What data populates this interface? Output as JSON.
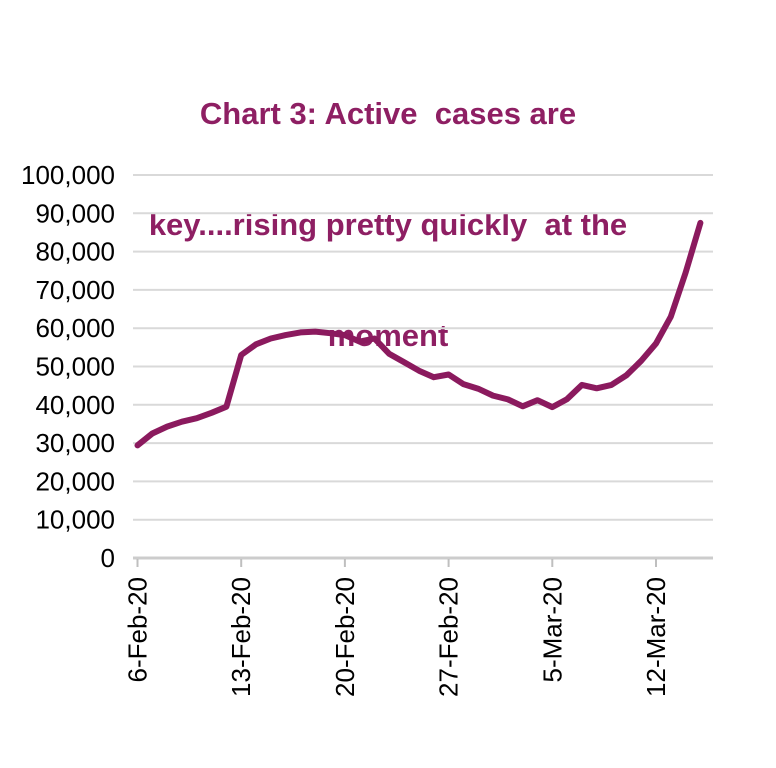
{
  "title": {
    "text": "Chart 3: Active cases are key....rising pretty quickly at the moment",
    "lines": [
      "Chart 3: Active  cases are",
      "key....rising pretty quickly  at the",
      "moment"
    ]
  },
  "colors": {
    "title": "#8E1F63",
    "line": "#8B1A5E",
    "gridline": "#D9D9D9",
    "axis_line": "#CCCCCC",
    "tick_mark": "#BFBFBF",
    "axis_text": "#000000",
    "background": "#FFFFFF"
  },
  "chart_data": {
    "type": "line",
    "title": "Chart 3: Active cases are key....rising pretty quickly at the moment",
    "xlabel": "",
    "ylabel": "",
    "ylim": [
      0,
      100000
    ],
    "grid": "horizontal",
    "legend": "none",
    "y_ticks": [
      0,
      10000,
      20000,
      30000,
      40000,
      50000,
      60000,
      70000,
      80000,
      90000,
      100000
    ],
    "y_tick_labels": [
      "0",
      "10,000",
      "20,000",
      "30,000",
      "40,000",
      "50,000",
      "60,000",
      "70,000",
      "80,000",
      "90,000",
      "100,000"
    ],
    "x_tick_labels": [
      "6-Feb-20",
      "13-Feb-20",
      "20-Feb-20",
      "27-Feb-20",
      "5-Mar-20",
      "12-Mar-20"
    ],
    "x": [
      "6-Feb-20",
      "7-Feb-20",
      "8-Feb-20",
      "9-Feb-20",
      "10-Feb-20",
      "11-Feb-20",
      "12-Feb-20",
      "13-Feb-20",
      "14-Feb-20",
      "15-Feb-20",
      "16-Feb-20",
      "17-Feb-20",
      "18-Feb-20",
      "19-Feb-20",
      "20-Feb-20",
      "21-Feb-20",
      "22-Feb-20",
      "23-Feb-20",
      "24-Feb-20",
      "25-Feb-20",
      "26-Feb-20",
      "27-Feb-20",
      "28-Feb-20",
      "29-Feb-20",
      "1-Mar-20",
      "2-Mar-20",
      "3-Mar-20",
      "4-Mar-20",
      "5-Mar-20",
      "6-Mar-20",
      "7-Mar-20",
      "8-Mar-20",
      "9-Mar-20",
      "10-Mar-20",
      "11-Mar-20",
      "12-Mar-20",
      "13-Mar-20",
      "14-Mar-20",
      "15-Mar-20"
    ],
    "series": [
      {
        "name": "Active cases",
        "color": "#8B1A5E",
        "values": [
          29400,
          32500,
          34300,
          35600,
          36500,
          37900,
          39500,
          53000,
          55800,
          57300,
          58200,
          58900,
          59100,
          58700,
          58200,
          56500,
          57300,
          53300,
          51100,
          48900,
          47200,
          47900,
          45400,
          44200,
          42400,
          41400,
          39600,
          41200,
          39400,
          41500,
          45200,
          44300,
          45200,
          47700,
          51500,
          56000,
          63000,
          74500,
          87500
        ]
      }
    ]
  }
}
